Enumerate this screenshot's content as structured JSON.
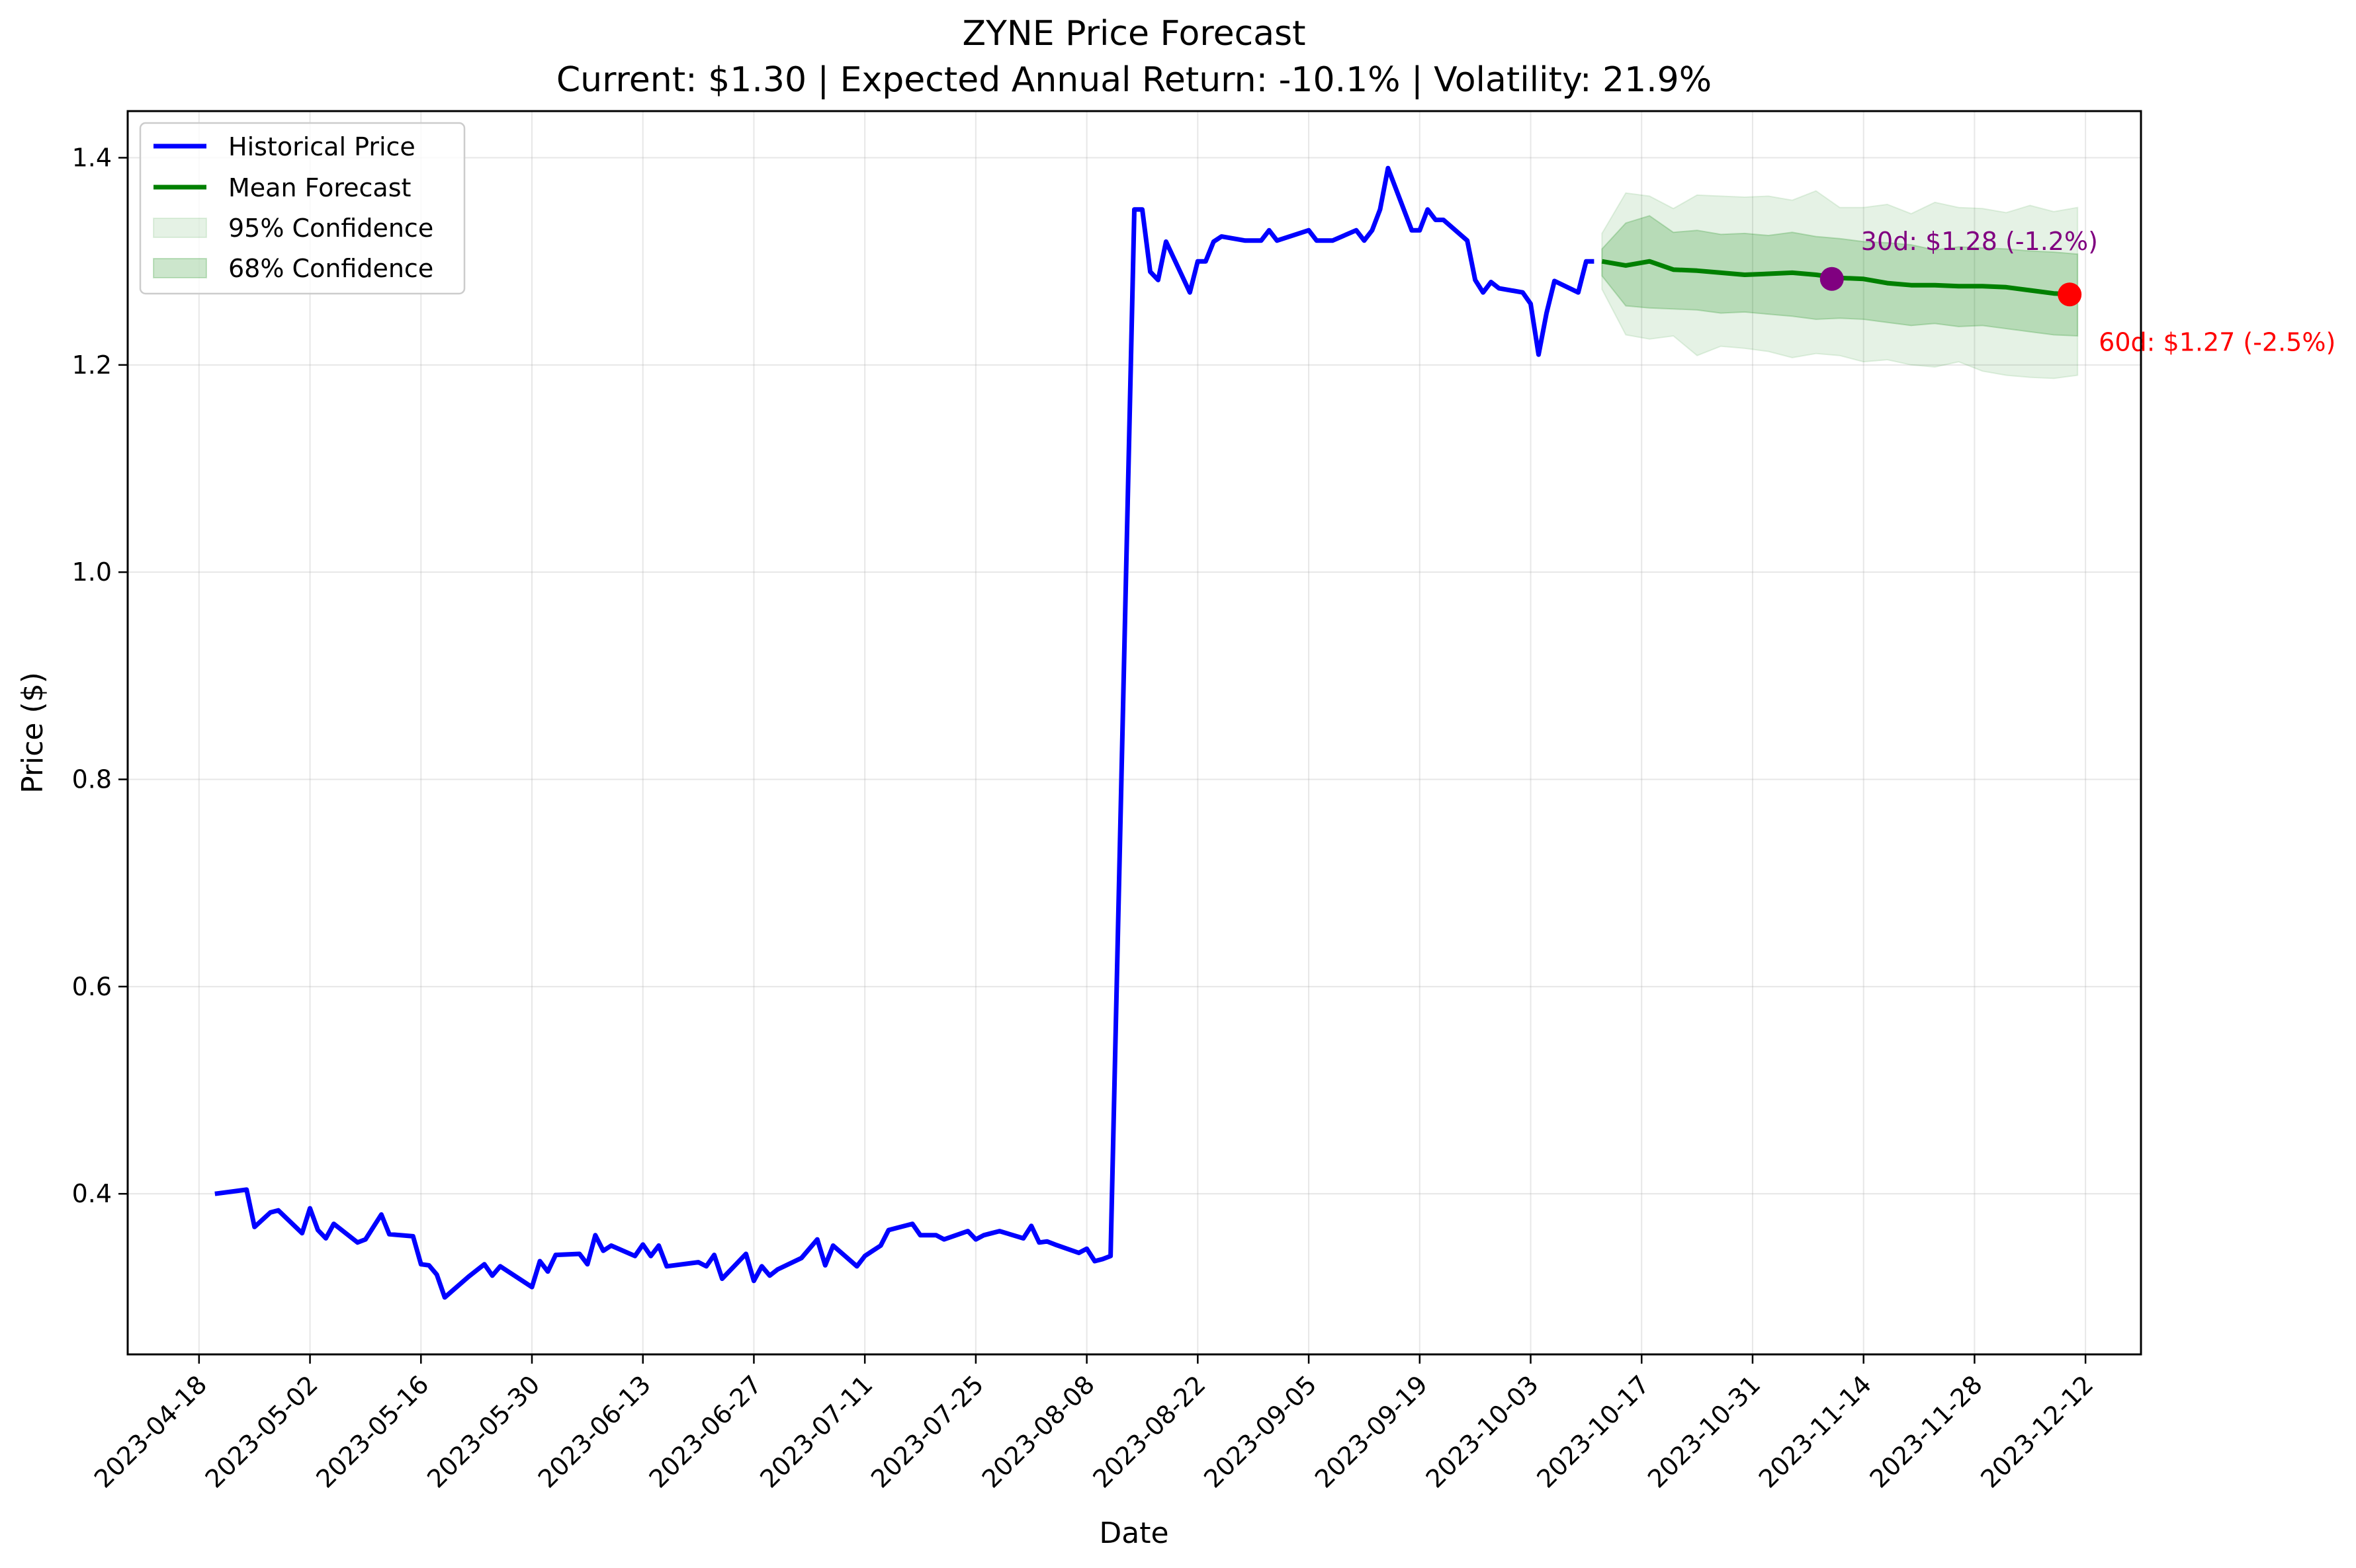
{
  "chart_data": {
    "type": "line",
    "title": "ZYNE Price Forecast",
    "subtitle": "Current: $1.30 | Expected Annual Return: -10.1% | Volatility: 21.9%",
    "xlabel": "Date",
    "ylabel": "Price ($)",
    "xlim": [
      "2023-04-09",
      "2023-12-19"
    ],
    "ylim": [
      0.245,
      1.445
    ],
    "grid": true,
    "legend_position": "top-left",
    "x_ticks": [
      "2023-04-18",
      "2023-05-02",
      "2023-05-16",
      "2023-05-30",
      "2023-06-13",
      "2023-06-27",
      "2023-07-11",
      "2023-07-25",
      "2023-08-08",
      "2023-08-22",
      "2023-09-05",
      "2023-09-19",
      "2023-10-03",
      "2023-10-17",
      "2023-10-31",
      "2023-11-14",
      "2023-11-28",
      "2023-12-12"
    ],
    "y_ticks": [
      "0.4",
      "0.6",
      "0.8",
      "1.0",
      "1.2",
      "1.4"
    ],
    "colors": {
      "historical": "#0000ff",
      "forecast": "#008000",
      "band": "#008000",
      "marker_30d": "#800080",
      "marker_60d": "#ff0000",
      "grid": "#b0b0b0"
    },
    "series": [
      {
        "name": "Historical Price",
        "x": [
          "2023-04-20",
          "2023-04-24",
          "2023-04-25",
          "2023-04-26",
          "2023-04-27",
          "2023-04-28",
          "2023-05-01",
          "2023-05-02",
          "2023-05-03",
          "2023-05-04",
          "2023-05-05",
          "2023-05-08",
          "2023-05-09",
          "2023-05-10",
          "2023-05-11",
          "2023-05-12",
          "2023-05-15",
          "2023-05-16",
          "2023-05-17",
          "2023-05-18",
          "2023-05-19",
          "2023-05-22",
          "2023-05-23",
          "2023-05-24",
          "2023-05-25",
          "2023-05-26",
          "2023-05-30",
          "2023-05-31",
          "2023-06-01",
          "2023-06-02",
          "2023-06-05",
          "2023-06-06",
          "2023-06-07",
          "2023-06-08",
          "2023-06-09",
          "2023-06-12",
          "2023-06-13",
          "2023-06-14",
          "2023-06-15",
          "2023-06-16",
          "2023-06-20",
          "2023-06-21",
          "2023-06-22",
          "2023-06-23",
          "2023-06-26",
          "2023-06-27",
          "2023-06-28",
          "2023-06-29",
          "2023-06-30",
          "2023-07-03",
          "2023-07-05",
          "2023-07-06",
          "2023-07-07",
          "2023-07-10",
          "2023-07-11",
          "2023-07-12",
          "2023-07-13",
          "2023-07-14",
          "2023-07-17",
          "2023-07-18",
          "2023-07-19",
          "2023-07-20",
          "2023-07-21",
          "2023-07-24",
          "2023-07-25",
          "2023-07-26",
          "2023-07-27",
          "2023-07-28",
          "2023-07-31",
          "2023-08-01",
          "2023-08-02",
          "2023-08-03",
          "2023-08-04",
          "2023-08-07",
          "2023-08-08",
          "2023-08-09",
          "2023-08-10",
          "2023-08-11",
          "2023-08-14",
          "2023-08-15",
          "2023-08-16",
          "2023-08-17",
          "2023-08-18",
          "2023-08-21",
          "2023-08-22",
          "2023-08-23",
          "2023-08-24",
          "2023-08-25",
          "2023-08-28",
          "2023-08-29",
          "2023-08-30",
          "2023-08-31",
          "2023-09-01",
          "2023-09-05",
          "2023-09-06",
          "2023-09-07",
          "2023-09-08",
          "2023-09-11",
          "2023-09-12",
          "2023-09-13",
          "2023-09-14",
          "2023-09-15",
          "2023-09-18",
          "2023-09-19",
          "2023-09-20",
          "2023-09-21",
          "2023-09-22",
          "2023-09-25",
          "2023-09-26",
          "2023-09-27",
          "2023-09-28",
          "2023-09-29",
          "2023-10-02",
          "2023-10-03",
          "2023-10-04",
          "2023-10-05",
          "2023-10-06",
          "2023-10-09",
          "2023-10-10",
          "2023-10-11"
        ],
        "values": [
          0.4,
          0.404,
          0.368,
          0.375,
          0.382,
          0.384,
          0.362,
          0.386,
          0.365,
          0.357,
          0.371,
          0.353,
          0.356,
          0.368,
          0.38,
          0.361,
          0.359,
          0.332,
          0.331,
          0.322,
          0.3,
          0.32,
          0.326,
          0.332,
          0.321,
          0.33,
          0.31,
          0.335,
          0.325,
          0.341,
          0.342,
          0.332,
          0.36,
          0.345,
          0.35,
          0.34,
          0.351,
          0.34,
          0.35,
          0.33,
          0.334,
          0.33,
          0.341,
          0.318,
          0.342,
          0.316,
          0.33,
          0.321,
          0.327,
          0.338,
          0.356,
          0.331,
          0.35,
          0.33,
          0.34,
          0.345,
          0.35,
          0.365,
          0.371,
          0.36,
          0.36,
          0.36,
          0.356,
          0.364,
          0.356,
          0.36,
          0.362,
          0.364,
          0.357,
          0.369,
          0.353,
          0.354,
          0.351,
          0.343,
          0.347,
          0.335,
          0.337,
          0.34,
          1.35,
          1.35,
          1.29,
          1.282,
          1.319,
          1.27,
          1.3,
          1.3,
          1.319,
          1.324,
          1.32,
          1.32,
          1.32,
          1.33,
          1.32,
          1.33,
          1.32,
          1.32,
          1.32,
          1.33,
          1.32,
          1.33,
          1.35,
          1.39,
          1.33,
          1.33,
          1.35,
          1.34,
          1.34,
          1.32,
          1.282,
          1.27,
          1.28,
          1.274,
          1.27,
          1.259,
          1.21,
          1.25,
          1.281,
          1.27,
          1.3,
          1.3
        ]
      },
      {
        "name": "Mean Forecast",
        "x": [
          "2023-10-12",
          "2023-10-15",
          "2023-10-18",
          "2023-10-21",
          "2023-10-24",
          "2023-10-27",
          "2023-10-30",
          "2023-11-02",
          "2023-11-05",
          "2023-11-08",
          "2023-11-11",
          "2023-11-14",
          "2023-11-17",
          "2023-11-20",
          "2023-11-23",
          "2023-11-26",
          "2023-11-29",
          "2023-12-02",
          "2023-12-05",
          "2023-12-08",
          "2023-12-11"
        ],
        "values": [
          1.3,
          1.296,
          1.3,
          1.292,
          1.291,
          1.289,
          1.287,
          1.288,
          1.289,
          1.287,
          1.284,
          1.283,
          1.279,
          1.277,
          1.277,
          1.276,
          1.276,
          1.275,
          1.272,
          1.269,
          1.268
        ]
      },
      {
        "name": "95% Confidence",
        "x": [
          "2023-10-12",
          "2023-10-15",
          "2023-10-18",
          "2023-10-21",
          "2023-10-24",
          "2023-10-27",
          "2023-10-30",
          "2023-11-02",
          "2023-11-05",
          "2023-11-08",
          "2023-11-11",
          "2023-11-14",
          "2023-11-17",
          "2023-11-20",
          "2023-11-23",
          "2023-11-26",
          "2023-11-29",
          "2023-12-02",
          "2023-12-05",
          "2023-12-08",
          "2023-12-11"
        ],
        "upper": [
          1.327,
          1.366,
          1.363,
          1.351,
          1.364,
          1.363,
          1.362,
          1.363,
          1.359,
          1.368,
          1.352,
          1.352,
          1.355,
          1.346,
          1.357,
          1.352,
          1.351,
          1.347,
          1.354,
          1.348,
          1.352
        ],
        "lower": [
          1.273,
          1.229,
          1.225,
          1.228,
          1.209,
          1.218,
          1.216,
          1.213,
          1.207,
          1.211,
          1.209,
          1.203,
          1.205,
          1.2,
          1.198,
          1.203,
          1.194,
          1.19,
          1.188,
          1.187,
          1.19
        ]
      },
      {
        "name": "68% Confidence",
        "x": [
          "2023-10-12",
          "2023-10-15",
          "2023-10-18",
          "2023-10-21",
          "2023-10-24",
          "2023-10-27",
          "2023-10-30",
          "2023-11-02",
          "2023-11-05",
          "2023-11-08",
          "2023-11-11",
          "2023-11-14",
          "2023-11-17",
          "2023-11-20",
          "2023-11-23",
          "2023-11-26",
          "2023-11-29",
          "2023-12-02",
          "2023-12-05",
          "2023-12-08",
          "2023-12-11"
        ],
        "upper": [
          1.312,
          1.337,
          1.344,
          1.328,
          1.33,
          1.326,
          1.327,
          1.325,
          1.328,
          1.324,
          1.322,
          1.319,
          1.318,
          1.316,
          1.311,
          1.314,
          1.313,
          1.312,
          1.31,
          1.309,
          1.307
        ],
        "lower": [
          1.286,
          1.257,
          1.255,
          1.254,
          1.253,
          1.25,
          1.251,
          1.249,
          1.247,
          1.244,
          1.245,
          1.244,
          1.241,
          1.238,
          1.24,
          1.237,
          1.238,
          1.235,
          1.232,
          1.229,
          1.228
        ]
      }
    ],
    "annotations": [
      {
        "label": "30d: $1.28 (-1.2%)",
        "x": "2023-11-10",
        "y": 1.283,
        "color": "#800080"
      },
      {
        "label": "60d: $1.27 (-2.5%)",
        "x": "2023-12-10",
        "y": 1.268,
        "color": "#ff0000"
      }
    ]
  }
}
